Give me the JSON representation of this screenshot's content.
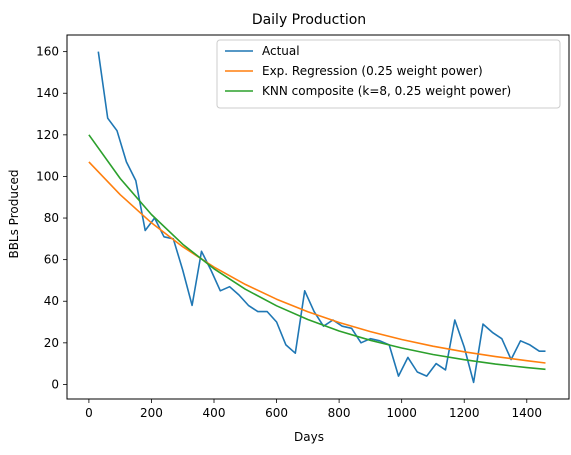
{
  "chart_data": {
    "type": "line",
    "title": "Daily Production",
    "xlabel": "Days",
    "ylabel": "BBLs Produced",
    "xlim": [
      -70,
      1535
    ],
    "ylim": [
      -7,
      168
    ],
    "xticks": [
      0,
      200,
      400,
      600,
      800,
      1000,
      1200,
      1400
    ],
    "yticks": [
      0,
      20,
      40,
      60,
      80,
      100,
      120,
      140,
      160
    ],
    "grid": false,
    "legend": "top-right",
    "series": [
      {
        "name": "Actual",
        "color": "#1f77b4",
        "x": [
          30,
          60,
          90,
          120,
          150,
          180,
          210,
          240,
          270,
          300,
          330,
          360,
          390,
          420,
          450,
          480,
          510,
          540,
          570,
          600,
          630,
          660,
          690,
          720,
          750,
          780,
          810,
          840,
          870,
          900,
          930,
          960,
          990,
          1020,
          1050,
          1080,
          1110,
          1140,
          1170,
          1200,
          1230,
          1260,
          1290,
          1320,
          1350,
          1380,
          1410,
          1440,
          1460
        ],
        "y": [
          160,
          128,
          122,
          107,
          98,
          74,
          80,
          71,
          70,
          55,
          38,
          64,
          55,
          45,
          47,
          43,
          38,
          35,
          35,
          30,
          19,
          15,
          45,
          35,
          28,
          31,
          28,
          27,
          20,
          22,
          21,
          19,
          4,
          13,
          6,
          4,
          10,
          7,
          31,
          18,
          1,
          29,
          25,
          22,
          12,
          21,
          19,
          16,
          16
        ]
      },
      {
        "name": "Exp. Regression (0.25 weight power)",
        "color": "#ff7f0e",
        "x": [
          0,
          100,
          200,
          300,
          400,
          500,
          600,
          700,
          800,
          900,
          1000,
          1100,
          1200,
          1300,
          1400,
          1460
        ],
        "y": [
          107,
          91.2,
          77.7,
          66.2,
          56.4,
          48.1,
          41.0,
          34.9,
          29.8,
          25.4,
          21.6,
          18.4,
          15.7,
          13.4,
          11.4,
          10.3
        ]
      },
      {
        "name": "KNN composite (k=8, 0.25 weight power)",
        "color": "#2ca02c",
        "x": [
          0,
          100,
          200,
          300,
          400,
          500,
          600,
          700,
          800,
          900,
          1000,
          1100,
          1200,
          1300,
          1400,
          1460
        ],
        "y": [
          120,
          99.0,
          81.7,
          67.4,
          55.6,
          45.8,
          37.8,
          31.2,
          25.7,
          21.2,
          17.5,
          14.4,
          11.9,
          9.8,
          8.1,
          7.3
        ]
      }
    ]
  }
}
